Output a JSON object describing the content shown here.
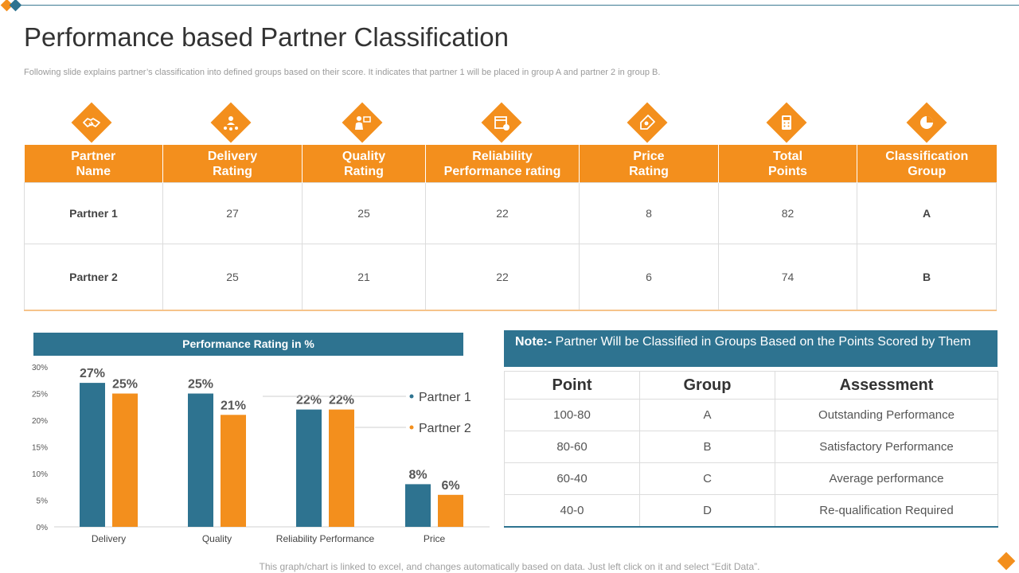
{
  "header": {
    "title": "Performance based Partner Classification",
    "subtitle": "Following slide explains partner’s classification into defined groups based on their score. It indicates that partner 1 will be placed in group A and partner 2 in group B."
  },
  "colors": {
    "accent": "#f38f1d",
    "teal": "#2e7390"
  },
  "icons": [
    "handshake-icon",
    "star-rating-icon",
    "presenter-icon",
    "calendar-check-icon",
    "price-tag-icon",
    "calculator-icon",
    "pie-chart-icon"
  ],
  "main_table": {
    "headers": [
      "Partner\nName",
      "Delivery\nRating",
      "Quality\nRating",
      "Reliability\nPerformance rating",
      "Price\nRating",
      "Total\nPoints",
      "Classification\nGroup"
    ],
    "rows": [
      [
        "Partner 1",
        "27",
        "25",
        "22",
        "8",
        "82",
        "A"
      ],
      [
        "Partner 2",
        "25",
        "21",
        "22",
        "6",
        "74",
        "B"
      ]
    ]
  },
  "chart_data": {
    "type": "bar",
    "title": "Performance Rating in %",
    "categories": [
      "Delivery",
      "Quality",
      "Reliability  Performance",
      "Price"
    ],
    "series": [
      {
        "name": "Partner 1",
        "color": "#2e7390",
        "values": [
          27,
          25,
          22,
          8
        ]
      },
      {
        "name": "Partner 2",
        "color": "#f38f1d",
        "values": [
          25,
          21,
          22,
          6
        ]
      }
    ],
    "ylim": [
      0,
      30
    ],
    "yticks": [
      "0%",
      "5%",
      "10%",
      "15%",
      "20%",
      "25%",
      "30%"
    ],
    "legend": "right"
  },
  "note": {
    "prefix": "Note:-",
    "text": " Partner Will be Classified in Groups Based on the Points Scored by Them"
  },
  "points_table": {
    "headers": [
      "Point",
      "Group",
      "Assessment"
    ],
    "rows": [
      [
        "100-80",
        "A",
        "Outstanding Performance"
      ],
      [
        "80-60",
        "B",
        "Satisfactory Performance"
      ],
      [
        "60-40",
        "C",
        "Average performance"
      ],
      [
        "40-0",
        "D",
        "Re-qualification Required"
      ]
    ]
  },
  "footer": "This graph/chart is linked to excel, and changes automatically based on data. Just left click on it and select “Edit Data”."
}
